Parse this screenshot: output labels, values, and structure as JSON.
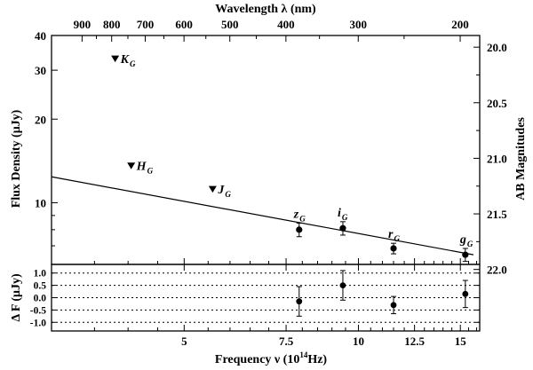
{
  "chart_data": {
    "type": "scatter",
    "top_axis": {
      "title": "Wavelength λ (nm)",
      "ticks": [
        {
          "label": "900",
          "nm": 900
        },
        {
          "label": "800",
          "nm": 800
        },
        {
          "label": "700",
          "nm": 700
        },
        {
          "label": "600",
          "nm": 600
        },
        {
          "label": "500",
          "nm": 500
        },
        {
          "label": "400",
          "nm": 400
        },
        {
          "label": "300",
          "nm": 300
        },
        {
          "label": "200",
          "nm": 200
        }
      ]
    },
    "bottom_axis": {
      "title_main": "Frequency ν (10",
      "title_sup": "14",
      "title_end": "Hz)",
      "ticks": [
        {
          "label": "5",
          "value": 5
        },
        {
          "label": "7.5",
          "value": 7.5
        },
        {
          "label": "10",
          "value": 10
        },
        {
          "label": "12.5",
          "value": 12.5
        },
        {
          "label": "15",
          "value": 15
        }
      ],
      "xlim": [
        2.95,
        16.2
      ],
      "scale": "log"
    },
    "main_panel": {
      "ylabel": "Flux Density (μJy)",
      "ylim": [
        6.0,
        40
      ],
      "scale": "log",
      "ticks": [
        {
          "label": "40",
          "value": 40
        },
        {
          "label": "30",
          "value": 30
        },
        {
          "label": "20",
          "value": 20
        },
        {
          "label": "10",
          "value": 10
        }
      ],
      "right_label": "AB Magnitudes",
      "right_ticks": [
        {
          "label": "20.0",
          "value": 20.0
        },
        {
          "label": "20.5",
          "value": 20.5
        },
        {
          "label": "21.0",
          "value": 21.0
        },
        {
          "label": "21.5",
          "value": 21.5
        },
        {
          "label": "22.0",
          "value": 22.0
        }
      ],
      "upper_limits": [
        {
          "band": "K",
          "sub": "G",
          "freq": 3.8,
          "flux": 33.0
        },
        {
          "band": "H",
          "sub": "G",
          "freq": 4.05,
          "flux": 13.6
        },
        {
          "band": "J",
          "sub": "G",
          "freq": 5.6,
          "flux": 11.2
        }
      ],
      "detections": [
        {
          "band": "z",
          "sub": "G",
          "freq": 7.9,
          "flux": 8.0,
          "err": 0.45
        },
        {
          "band": "i",
          "sub": "G",
          "freq": 9.4,
          "flux": 8.1,
          "err": 0.45
        },
        {
          "band": "r",
          "sub": "G",
          "freq": 11.5,
          "flux": 6.85,
          "err": 0.3
        },
        {
          "band": "g",
          "sub": "G",
          "freq": 15.3,
          "flux": 6.5,
          "err": 0.35
        }
      ],
      "fit_line": {
        "x": [
          2.95,
          15.8
        ],
        "y": [
          12.4,
          6.5
        ]
      }
    },
    "residual_panel": {
      "ylabel": "Δ F (μJy)",
      "ylim": [
        -1.35,
        1.35
      ],
      "ticks": [
        {
          "label": "1.0",
          "value": 1.0
        },
        {
          "label": "0.5",
          "value": 0.5
        },
        {
          "label": "0.0",
          "value": 0.0
        },
        {
          "label": "-0.5",
          "value": -0.5
        },
        {
          "label": "-1.0",
          "value": -1.0
        }
      ],
      "dotted_lines": [
        1.0,
        0.5,
        0.0,
        -0.5,
        -1.0
      ],
      "points": [
        {
          "freq": 7.9,
          "value": -0.15,
          "err": 0.6
        },
        {
          "freq": 9.4,
          "value": 0.5,
          "err": 0.6
        },
        {
          "freq": 11.5,
          "value": -0.3,
          "err": 0.35
        },
        {
          "freq": 15.3,
          "value": 0.15,
          "err": 0.55
        }
      ]
    }
  }
}
